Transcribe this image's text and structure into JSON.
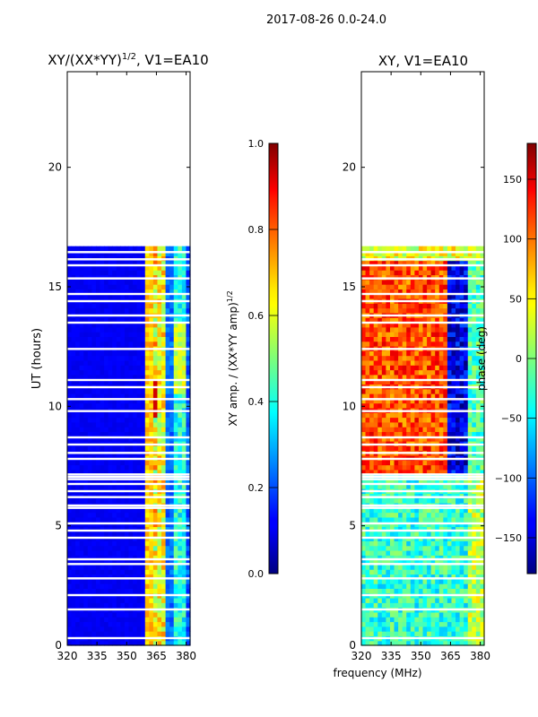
{
  "figure_title": "2017-08-26 0.0-24.0",
  "shared_xlabel": "frequency (MHz)",
  "chart_data": [
    {
      "type": "heatmap",
      "id": "amp",
      "title_main": "XY/(XX*YY)",
      "title_sup": "1/2",
      "title_tail": ", V1=EA10",
      "ylabel": "UT (hours)",
      "xlim": [
        320,
        382
      ],
      "ylim": [
        0,
        24
      ],
      "xticks": [
        320,
        335,
        350,
        365,
        380
      ],
      "yticks": [
        0,
        5,
        10,
        15,
        20
      ],
      "data_extent_hours": [
        0,
        16.7
      ],
      "valid_freq_range_mhz": [
        359,
        382
      ],
      "colorbar": {
        "label_main": "XY amp. / (XX*YY amp)",
        "label_sup": "1/2",
        "range": [
          0.0,
          1.0
        ],
        "ticks": [
          "0.0",
          "0.2",
          "0.4",
          "0.6",
          "0.8",
          "1.0"
        ]
      }
    },
    {
      "type": "heatmap",
      "id": "phase",
      "title_main": "XY, V1=EA10",
      "ylabel": "",
      "xlim": [
        320,
        382
      ],
      "ylim": [
        0,
        24
      ],
      "xticks": [
        320,
        335,
        350,
        365,
        380
      ],
      "yticks": [
        0,
        5,
        10,
        15,
        20
      ],
      "data_extent_hours": [
        0,
        16.7
      ],
      "colorbar": {
        "label_main": "phase (deg)",
        "range": [
          -180,
          180
        ],
        "ticks": [
          "−150",
          "−100",
          "−50",
          "0",
          "50",
          "100",
          "150"
        ]
      }
    }
  ],
  "flagged_hours": [
    0.3,
    1.5,
    2.1,
    2.8,
    3.4,
    3.6,
    4.5,
    4.8,
    5.1,
    5.75,
    5.85,
    6.2,
    6.45,
    6.75,
    6.95,
    7.05,
    7.15,
    7.8,
    8.05,
    8.4,
    8.7,
    9.8,
    10.3,
    10.8,
    11.1,
    12.4,
    13.5,
    13.8,
    14.4,
    14.7,
    15.35,
    15.9,
    16.15,
    16.45
  ]
}
